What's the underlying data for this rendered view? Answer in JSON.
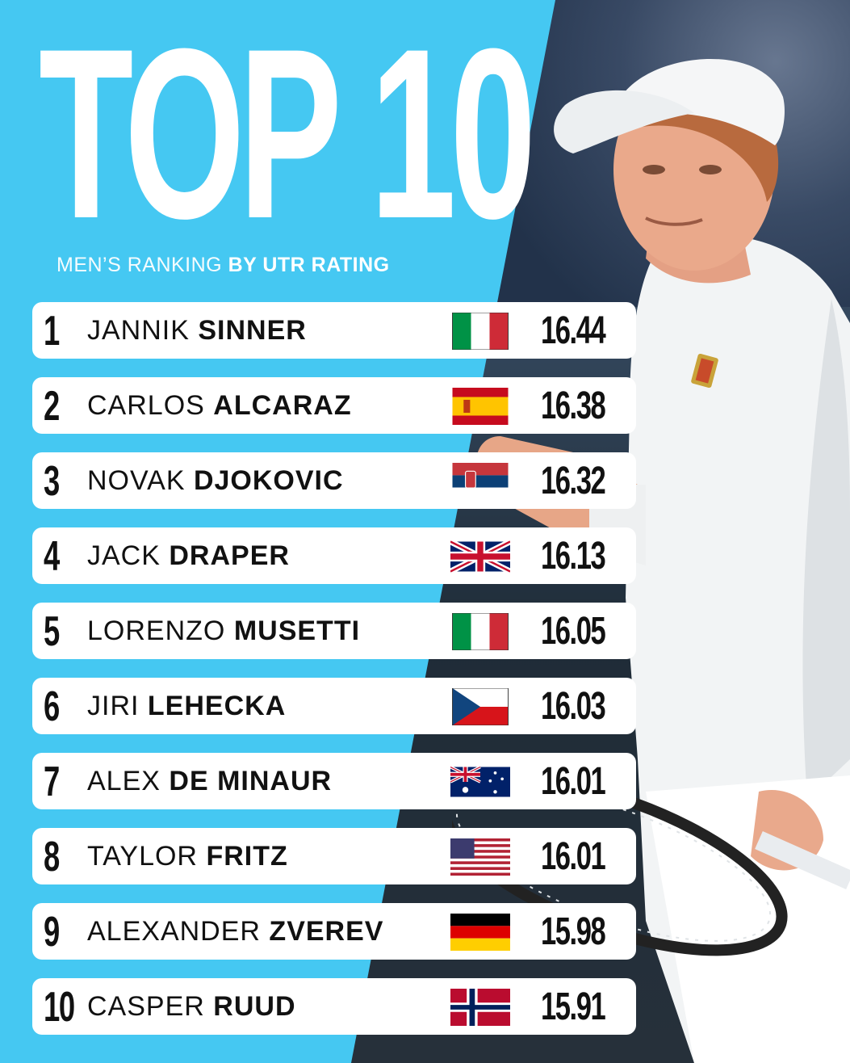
{
  "header": {
    "title": "TOP 10",
    "subtitle_light": "MEN’S RANKING",
    "subtitle_bold": "BY UTR RATING"
  },
  "rankings": [
    {
      "rank": "1",
      "first": "JANNIK",
      "last": "SINNER",
      "country_flag": "italy-flag",
      "rating": "16.44"
    },
    {
      "rank": "2",
      "first": "CARLOS",
      "last": "ALCARAZ",
      "country_flag": "spain-flag",
      "rating": "16.38"
    },
    {
      "rank": "3",
      "first": "NOVAK",
      "last": "DJOKOVIC",
      "country_flag": "serbia-flag",
      "rating": "16.32"
    },
    {
      "rank": "4",
      "first": "JACK",
      "last": "DRAPER",
      "country_flag": "uk-flag",
      "rating": "16.13"
    },
    {
      "rank": "5",
      "first": "LORENZO",
      "last": "MUSETTI",
      "country_flag": "italy-flag",
      "rating": "16.05"
    },
    {
      "rank": "6",
      "first": "JIRI",
      "last": "LEHECKA",
      "country_flag": "czech-flag",
      "rating": "16.03"
    },
    {
      "rank": "7",
      "first": "ALEX",
      "last": "DE MINAUR",
      "country_flag": "australia-flag",
      "rating": "16.01"
    },
    {
      "rank": "8",
      "first": "TAYLOR",
      "last": "FRITZ",
      "country_flag": "usa-flag",
      "rating": "16.01"
    },
    {
      "rank": "9",
      "first": "ALEXANDER",
      "last": "ZVEREV",
      "country_flag": "germany-flag",
      "rating": "15.98"
    },
    {
      "rank": "10",
      "first": "CASPER",
      "last": "RUUD",
      "country_flag": "norway-flag",
      "rating": "15.91"
    }
  ],
  "colors": {
    "panel_blue": "#45c8f2",
    "row_white": "#ffffff",
    "text_dark": "#111111"
  }
}
